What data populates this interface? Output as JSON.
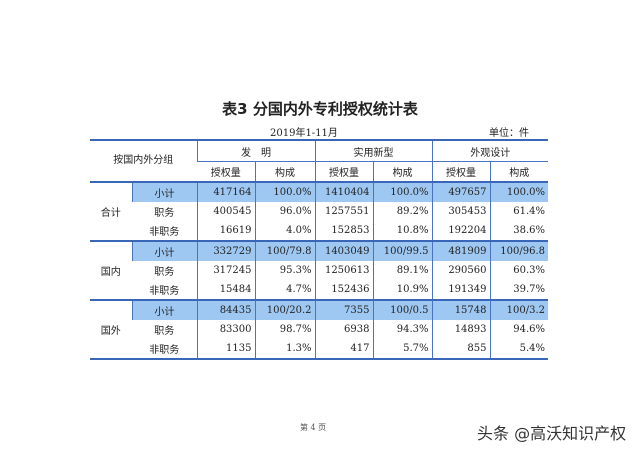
{
  "title": "表3  分国内外专利授权统计表",
  "period": "2019年1-11月",
  "unit": "单位：件",
  "header": {
    "group_label": "按国内外分组",
    "categories": [
      "发　明",
      "实用新型",
      "外观设计"
    ],
    "sub": [
      "授权量",
      "构成"
    ]
  },
  "groups": [
    {
      "name": "合计",
      "rows": [
        {
          "label": "小计",
          "values": [
            "417164",
            "100.0%",
            "1410404",
            "100.0%",
            "497657",
            "100.0%"
          ]
        },
        {
          "label": "职务",
          "values": [
            "400545",
            "96.0%",
            "1257551",
            "89.2%",
            "305453",
            "61.4%"
          ]
        },
        {
          "label": "非职务",
          "values": [
            "16619",
            "4.0%",
            "152853",
            "10.8%",
            "192204",
            "38.6%"
          ]
        }
      ]
    },
    {
      "name": "国内",
      "rows": [
        {
          "label": "小计",
          "values": [
            "332729",
            "100/79.8",
            "1403049",
            "100/99.5",
            "481909",
            "100/96.8"
          ]
        },
        {
          "label": "职务",
          "values": [
            "317245",
            "95.3%",
            "1250613",
            "89.1%",
            "290560",
            "60.3%"
          ]
        },
        {
          "label": "非职务",
          "values": [
            "15484",
            "4.7%",
            "152436",
            "10.9%",
            "191349",
            "39.7%"
          ]
        }
      ]
    },
    {
      "name": "国外",
      "rows": [
        {
          "label": "小计",
          "values": [
            "84435",
            "100/20.2",
            "7355",
            "100/0.5",
            "15748",
            "100/3.2"
          ]
        },
        {
          "label": "职务",
          "values": [
            "83300",
            "98.7%",
            "6938",
            "94.3%",
            "14893",
            "94.6%"
          ]
        },
        {
          "label": "非职务",
          "values": [
            "1135",
            "1.3%",
            "417",
            "5.7%",
            "855",
            "5.4%"
          ]
        }
      ]
    }
  ],
  "footer": "第 4 页",
  "watermark": "头条 @高沃知识产权",
  "colors": {
    "highlight": "#9ec8f2",
    "rule": "#3a66b8"
  }
}
